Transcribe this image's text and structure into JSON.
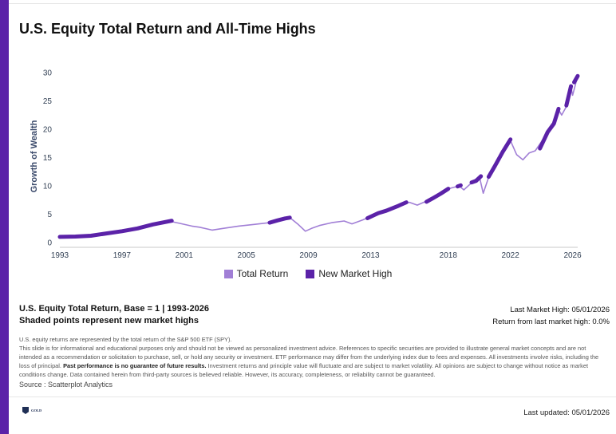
{
  "title": "U.S. Equity Total Return and All-Time Highs",
  "chart_data": {
    "type": "line",
    "ylabel": "Growth of Wealth",
    "xlabel": "",
    "ylim": [
      0,
      30
    ],
    "yticks": [
      0,
      5,
      10,
      15,
      20,
      25,
      30
    ],
    "xlim": [
      1993,
      2026.33
    ],
    "xticks": [
      1993,
      1997,
      2001,
      2005,
      2009,
      2013,
      2018,
      2022,
      2026
    ],
    "legend_position": "bottom-center",
    "series": [
      {
        "name": "Total Return",
        "color": "#a17fd6",
        "x": [
          1993.0,
          1994.0,
          1995.0,
          1996.0,
          1997.0,
          1998.0,
          1999.0,
          2000.0,
          2000.7,
          2001.5,
          2002.0,
          2002.8,
          2003.5,
          2004.5,
          2005.5,
          2006.5,
          2007.3,
          2007.8,
          2008.3,
          2008.8,
          2009.2,
          2009.7,
          2010.5,
          2011.3,
          2011.8,
          2012.5,
          2013.0,
          2014.0,
          2014.8,
          2015.5,
          2016.0,
          2016.5,
          2017.0,
          2017.5,
          2018.0,
          2018.7,
          2019.0,
          2019.6,
          2020.0,
          2020.25,
          2020.6,
          2021.0,
          2021.5,
          2022.0,
          2022.4,
          2022.8,
          2023.2,
          2023.6,
          2024.0,
          2024.4,
          2024.8,
          2025.1,
          2025.3,
          2025.6,
          2025.9,
          2026.0,
          2026.33
        ],
        "y": [
          1.0,
          1.05,
          1.2,
          1.6,
          2.0,
          2.5,
          3.2,
          3.8,
          3.4,
          2.9,
          2.7,
          2.2,
          2.5,
          2.9,
          3.2,
          3.5,
          4.2,
          4.4,
          3.3,
          2.0,
          2.5,
          3.0,
          3.5,
          3.8,
          3.3,
          4.0,
          4.6,
          5.6,
          6.5,
          7.1,
          6.6,
          7.2,
          7.8,
          8.6,
          9.5,
          10.0,
          9.3,
          10.8,
          11.7,
          8.7,
          11.5,
          13.5,
          16.0,
          18.0,
          15.5,
          14.6,
          15.8,
          16.2,
          17.8,
          19.5,
          21.0,
          23.5,
          22.5,
          24.0,
          27.5,
          26.0,
          29.4
        ]
      },
      {
        "name": "New Market High",
        "color": "#5b22a8",
        "segments": [
          {
            "x": [
              1993.0,
              1994.0,
              1995.0,
              1996.0,
              1997.0,
              1998.0,
              1999.0,
              2000.2
            ],
            "y": [
              1.0,
              1.05,
              1.2,
              1.6,
              2.0,
              2.5,
              3.2,
              3.85
            ]
          },
          {
            "x": [
              2006.5,
              2007.0,
              2007.5,
              2007.8
            ],
            "y": [
              3.5,
              3.9,
              4.25,
              4.4
            ]
          },
          {
            "x": [
              2012.8,
              2013.5,
              2014.0,
              2014.8,
              2015.3
            ],
            "y": [
              4.3,
              5.2,
              5.6,
              6.5,
              7.1
            ]
          },
          {
            "x": [
              2016.6,
              2017.0,
              2017.5,
              2018.0
            ],
            "y": [
              7.2,
              7.8,
              8.6,
              9.5
            ]
          },
          {
            "x": [
              2018.6,
              2018.8
            ],
            "y": [
              9.9,
              10.1
            ]
          },
          {
            "x": [
              2019.5,
              2019.8,
              2020.1
            ],
            "y": [
              10.6,
              10.9,
              11.7
            ]
          },
          {
            "x": [
              2020.6,
              2021.0,
              2021.5,
              2022.0
            ],
            "y": [
              11.6,
              13.5,
              16.0,
              18.2
            ]
          },
          {
            "x": [
              2023.9,
              2024.4,
              2024.8,
              2025.1
            ],
            "y": [
              16.6,
              19.5,
              21.0,
              23.6
            ]
          },
          {
            "x": [
              2025.6,
              2025.9
            ],
            "y": [
              24.2,
              27.6
            ]
          },
          {
            "x": [
              2026.1,
              2026.33
            ],
            "y": [
              28.3,
              29.4
            ]
          }
        ]
      }
    ]
  },
  "subtitle": {
    "line1": "U.S. Equity Total Return, Base = 1 | 1993-2026",
    "line2": "Shaded points represent new market highs"
  },
  "stats": {
    "last_high": "Last Market High: 05/01/2026",
    "return_from_high": "Return from last market high: 0.0%"
  },
  "footnote": {
    "line1": "U.S. equity returns are represented by the total return of the S&P 500 ETF (SPY).",
    "line2": "This slide is for informational and educational purposes only and should not be viewed as personalized investment advice. References to specific securities are provided to illustrate general market concepts and are not intended as a recommendation or solicitation to purchase, sell, or hold any security or investment. ETF performance may differ from the underlying index due to fees and expenses. All investments involve risks, including the loss of principal.",
    "bold": "Past performance is no guarantee of future results.",
    "line3": "Investment returns and principle value will fluctuate and are subject to market volatility. All opinions are subject to change without notice as market conditions change. Data contained herein from third-party sources is believed reliable. However, its accuracy, completeness, or reliability cannot be guaranteed."
  },
  "source": "Source : Scatterplot Analytics",
  "logo_text": "GOLD",
  "last_updated": "Last updated: 05/01/2026",
  "colors": {
    "accent": "#5b22a8",
    "total_return": "#a17fd6"
  }
}
